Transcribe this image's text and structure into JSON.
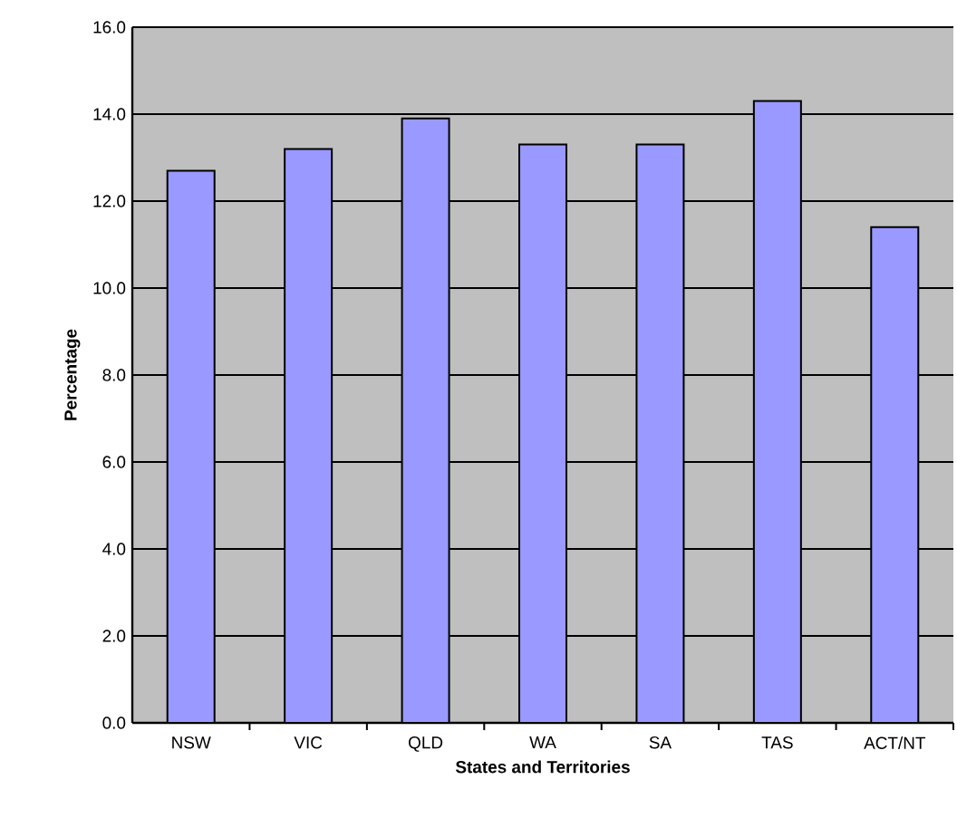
{
  "chart_data": {
    "type": "bar",
    "xlabel": "States and Territories",
    "ylabel": "Percentage",
    "categories": [
      "NSW",
      "VIC",
      "QLD",
      "WA",
      "SA",
      "TAS",
      "ACT/NT"
    ],
    "values": [
      12.7,
      13.2,
      13.9,
      13.3,
      13.3,
      14.3,
      11.4
    ],
    "color": "#9999ff",
    "ylim": [
      0,
      16
    ],
    "yticks": [
      {
        "value": 0,
        "label": "0.0"
      },
      {
        "value": 2,
        "label": "2.0"
      },
      {
        "value": 4,
        "label": "4.0"
      },
      {
        "value": 6,
        "label": "6.0"
      },
      {
        "value": 8,
        "label": "8.0"
      },
      {
        "value": 10,
        "label": "10.0"
      },
      {
        "value": 12,
        "label": "12.0"
      },
      {
        "value": 14,
        "label": "14.0"
      },
      {
        "value": 16,
        "label": "16.0"
      }
    ],
    "grid": "y"
  }
}
